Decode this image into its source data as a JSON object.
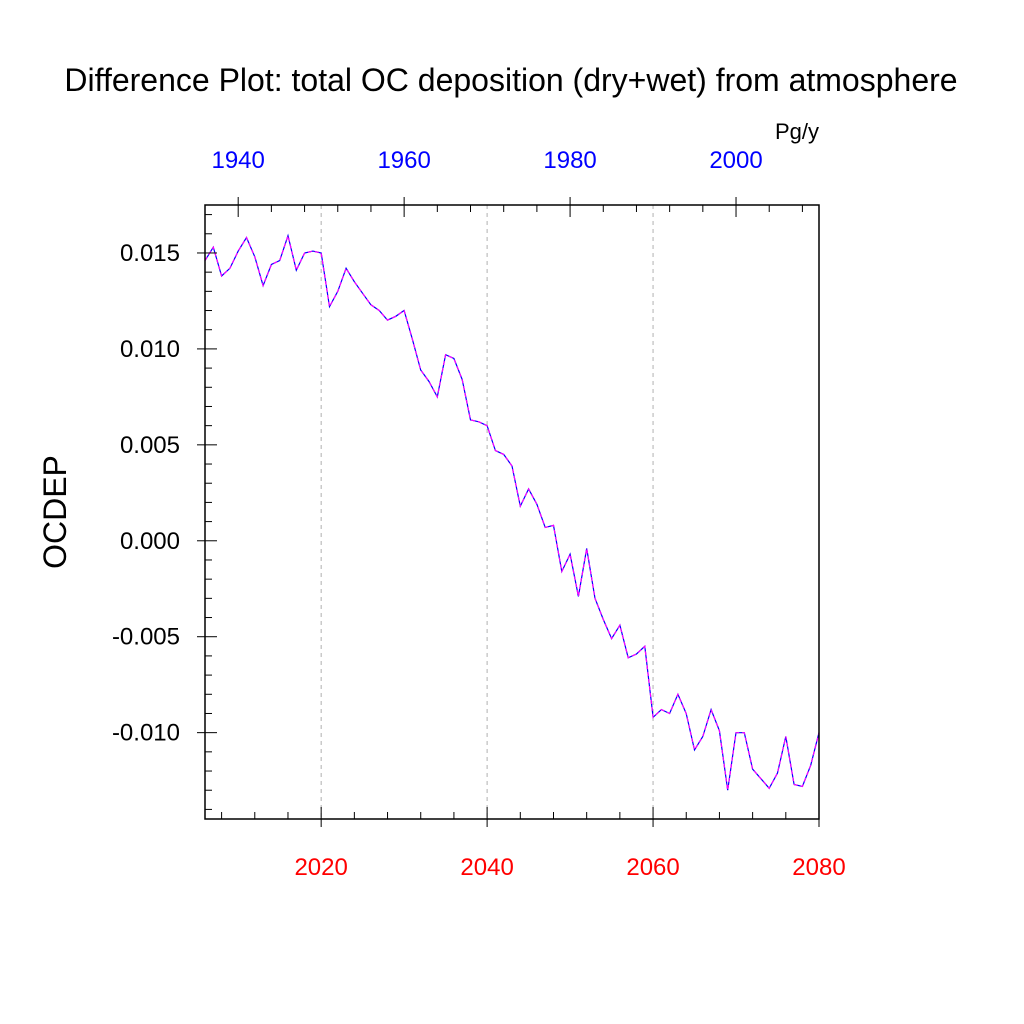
{
  "chart_data": {
    "type": "line",
    "title": "Difference Plot: total OC deposition (dry+wet) from atmosphere",
    "ylabel": "OCDEP",
    "units": "Pg/y",
    "xlim": [
      2006,
      2080
    ],
    "ylim": [
      -0.0145,
      0.0175
    ],
    "x_ticks_bottom": [
      {
        "value": 2020,
        "label": "2020"
      },
      {
        "value": 2040,
        "label": "2040"
      },
      {
        "value": 2060,
        "label": "2060"
      },
      {
        "value": 2080,
        "label": "2080"
      }
    ],
    "x_ticks_top": [
      {
        "value": 2010,
        "label": "1940"
      },
      {
        "value": 2030,
        "label": "1960"
      },
      {
        "value": 2050,
        "label": "1980"
      },
      {
        "value": 2070,
        "label": "2000"
      }
    ],
    "y_ticks": [
      {
        "value": 0.015,
        "label": "0.015"
      },
      {
        "value": 0.01,
        "label": "0.010"
      },
      {
        "value": 0.005,
        "label": "0.005"
      },
      {
        "value": 0.0,
        "label": "0.000"
      },
      {
        "value": -0.005,
        "label": "-0.005"
      },
      {
        "value": -0.01,
        "label": "-0.010"
      }
    ],
    "vertical_gridlines": [
      2020,
      2040,
      2060
    ],
    "grid": "vertical dashed at major bottom ticks",
    "colors": {
      "axis": "#000000",
      "bottom_tick_labels": "#ff0000",
      "top_tick_labels": "#0000ff",
      "series_primary": "#0000ff",
      "series_overlay": "#ff00ff",
      "grid": "#b0b0b0"
    },
    "series": [
      {
        "x": [
          2006,
          2007,
          2008,
          2009,
          2010,
          2011,
          2012,
          2013,
          2014,
          2015,
          2016,
          2017,
          2018,
          2019,
          2020,
          2021,
          2022,
          2023,
          2024,
          2025,
          2026,
          2027,
          2028,
          2029,
          2030,
          2031,
          2032,
          2033,
          2034,
          2035,
          2036,
          2037,
          2038,
          2039,
          2040,
          2041,
          2042,
          2043,
          2044,
          2045,
          2046,
          2047,
          2048,
          2049,
          2050,
          2051,
          2052,
          2053,
          2054,
          2055,
          2056,
          2057,
          2058,
          2059,
          2060,
          2061,
          2062,
          2063,
          2064,
          2065,
          2066,
          2067,
          2068,
          2069,
          2070,
          2071,
          2072,
          2073,
          2074,
          2075,
          2076,
          2077,
          2078,
          2079,
          2080
        ],
        "values": [
          0.0146,
          0.0153,
          0.0138,
          0.0142,
          0.0151,
          0.0158,
          0.0148,
          0.0133,
          0.0144,
          0.0146,
          0.0159,
          0.0141,
          0.015,
          0.0151,
          0.015,
          0.0122,
          0.013,
          0.0142,
          0.0135,
          0.0129,
          0.0123,
          0.012,
          0.0115,
          0.0117,
          0.012,
          0.0105,
          0.0089,
          0.0083,
          0.0075,
          0.0097,
          0.0095,
          0.0084,
          0.0063,
          0.0062,
          0.006,
          0.0047,
          0.0045,
          0.0039,
          0.0018,
          0.0027,
          0.0019,
          0.0007,
          0.0008,
          -0.0016,
          -0.0007,
          -0.0029,
          -0.0004,
          -0.003,
          -0.0041,
          -0.0051,
          -0.0044,
          -0.0061,
          -0.0059,
          -0.0055,
          -0.0092,
          -0.0088,
          -0.009,
          -0.008,
          -0.009,
          -0.0109,
          -0.0102,
          -0.0088,
          -0.0099,
          -0.013,
          -0.01,
          -0.01,
          -0.0119,
          -0.0124,
          -0.0129,
          -0.0121,
          -0.0102,
          -0.0127,
          -0.0128,
          -0.0117,
          -0.01
        ]
      }
    ]
  }
}
